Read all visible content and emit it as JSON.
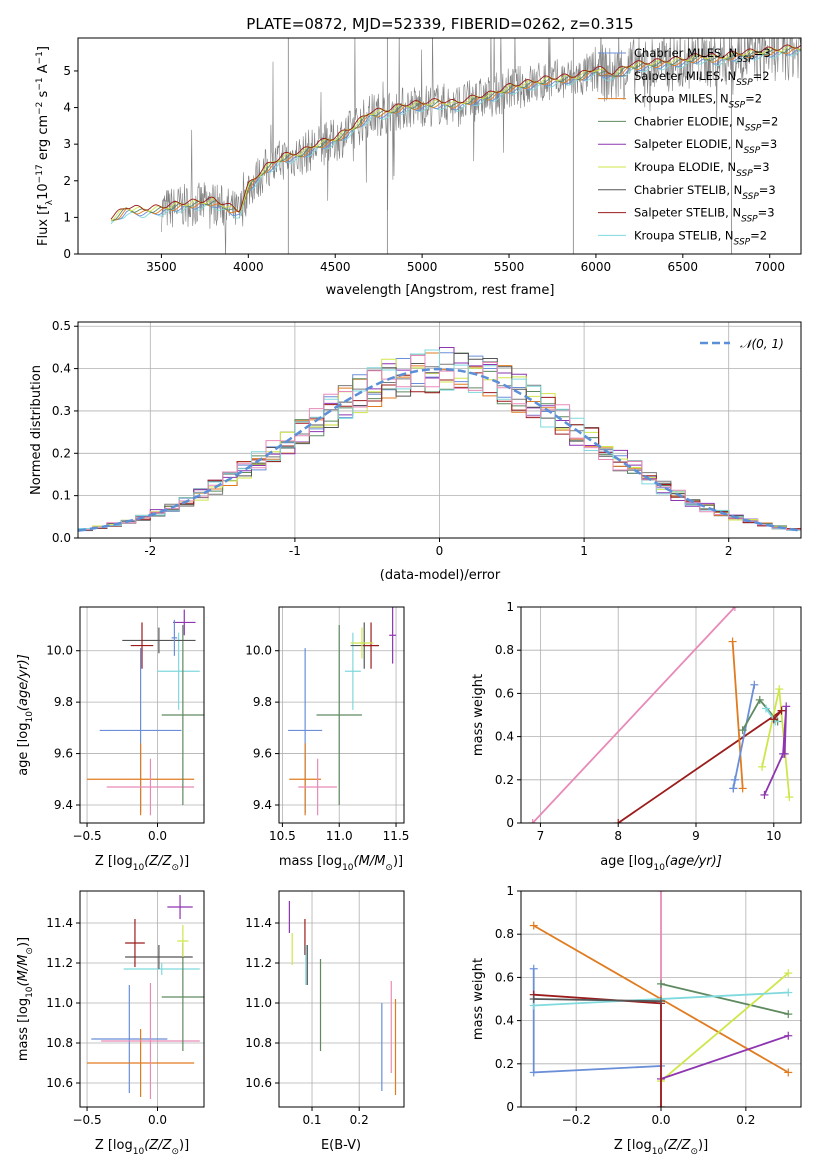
{
  "figure": {
    "title": "PLATE=0872, MJD=52339, FIBERID=0262, z=0.315"
  },
  "colors": {
    "chabrier_miles": "#6a8fd8",
    "salpeter_miles": "#7a7a7a",
    "kroupa_miles": "#e07b20",
    "chabrier_elodie": "#5f8a60",
    "salpeter_elodie": "#8e35b0",
    "kroupa_elodie": "#cfe64a",
    "chabrier_stelib": "#555555",
    "salpeter_stelib": "#9b1c1c",
    "kroupa_stelib": "#7fd9dd",
    "extra_pink": "#e88ab8",
    "gauss_dash": "#5b8fd8"
  },
  "chart_data": [
    {
      "id": "spectrum",
      "type": "line",
      "title": "PLATE=0872, MJD=52339, FIBERID=0262, z=0.315",
      "xlabel": "wavelength [Angstrom, rest frame]",
      "ylabel_main": "Flux [f",
      "ylabel_sub": "λ",
      "ylabel_rest": "10",
      "ylabel_exp1": "−17",
      "ylabel_mid": " erg cm",
      "ylabel_exp2": "−2",
      "ylabel_mid2": " s",
      "ylabel_exp3": "−1",
      "ylabel_end": " A",
      "ylabel_exp4": "−1",
      "ylabel_close": "]",
      "xlim": [
        3020,
        7180
      ],
      "ylim": [
        0,
        5.9
      ],
      "xticks": [
        3500,
        4000,
        4500,
        5000,
        5500,
        6000,
        6500,
        7000
      ],
      "yticks": [
        0,
        1,
        2,
        3,
        4,
        5
      ],
      "legend_position": "right",
      "legend": [
        {
          "label": "Chabrier MILES, N",
          "sub": "SSP",
          "eq": "=3",
          "color_key": "chabrier_miles"
        },
        {
          "label": "Salpeter MILES, N",
          "sub": "SSP",
          "eq": "=2",
          "color_key": "salpeter_miles"
        },
        {
          "label": "Kroupa MILES, N",
          "sub": "SSP",
          "eq": "=2",
          "color_key": "kroupa_miles"
        },
        {
          "label": "Chabrier ELODIE, N",
          "sub": "SSP",
          "eq": "=2",
          "color_key": "chabrier_elodie"
        },
        {
          "label": "Salpeter ELODIE, N",
          "sub": "SSP",
          "eq": "=3",
          "color_key": "salpeter_elodie"
        },
        {
          "label": "Kroupa ELODIE, N",
          "sub": "SSP",
          "eq": "=3",
          "color_key": "kroupa_elodie"
        },
        {
          "label": "Chabrier STELIB, N",
          "sub": "SSP",
          "eq": "=3",
          "color_key": "chabrier_stelib"
        },
        {
          "label": "Salpeter STELIB, N",
          "sub": "SSP",
          "eq": "=3",
          "color_key": "salpeter_stelib"
        },
        {
          "label": "Kroupa STELIB, N",
          "sub": "SSP",
          "eq": "=2",
          "color_key": "kroupa_stelib"
        }
      ],
      "model_curve": {
        "x": [
          3210,
          3300,
          3400,
          3500,
          3600,
          3700,
          3800,
          3900,
          3950,
          4000,
          4100,
          4200,
          4300,
          4400,
          4500,
          4600,
          4700,
          4800,
          4900,
          5000,
          5100,
          5200,
          5300,
          5400,
          5500,
          5600,
          5700,
          5800,
          5900,
          6000,
          6100,
          6200,
          6300,
          6400,
          6500,
          6600,
          6700,
          6800,
          6900,
          7000,
          7100,
          7180
        ],
        "y": [
          0.9,
          1.2,
          1.15,
          1.2,
          1.3,
          1.35,
          1.4,
          1.2,
          1.1,
          1.8,
          2.3,
          2.6,
          2.7,
          2.95,
          3.1,
          3.4,
          3.8,
          3.85,
          4.0,
          4.05,
          4.1,
          4.05,
          4.2,
          4.3,
          4.5,
          4.6,
          4.7,
          4.75,
          4.8,
          5.0,
          4.85,
          5.1,
          5.15,
          5.2,
          5.25,
          5.35,
          5.3,
          5.4,
          5.45,
          5.5,
          5.55,
          5.6
        ]
      }
    },
    {
      "id": "residuals",
      "type": "area",
      "xlabel": "(data-model)/error",
      "ylabel": "Normed distribution",
      "xlim": [
        -2.5,
        2.5
      ],
      "ylim": [
        0,
        0.51
      ],
      "xticks": [
        -2,
        -1,
        0,
        1,
        2
      ],
      "yticks": [
        0.0,
        0.1,
        0.2,
        0.3,
        0.4,
        0.5
      ],
      "legend_position": "top-right",
      "legend_label": "𝒩(0, 1)",
      "grid": true
    },
    {
      "id": "age_vs_Z",
      "type": "scatter",
      "xlabel": "Z [log",
      "xlabel_sub": "10",
      "xlabel_rest": "(Z/Z",
      "xlabel_sub2": "⊙",
      "xlabel_end": ")]",
      "ylabel": "age  [log",
      "ylabel_sub": "10",
      "ylabel_rest": "(age/yr)]",
      "xlim": [
        -0.55,
        0.33
      ],
      "ylim": [
        9.33,
        10.17
      ],
      "xticks": [
        -0.5,
        0.0
      ],
      "xticklabels": [
        "−0.5",
        "0.0"
      ],
      "yticks": [
        9.4,
        9.6,
        9.8,
        10.0
      ],
      "yticklabels": [
        "9.4",
        "9.6",
        "9.8",
        "10.0"
      ],
      "grid": true,
      "points": [
        {
          "x": -0.12,
          "y": 9.69,
          "xerr": 0.29,
          "yerr": 0.32,
          "color_key": "chabrier_miles"
        },
        {
          "x": -0.12,
          "y": 9.5,
          "xerr": 0.38,
          "yerr": 0.14,
          "color_key": "kroupa_miles"
        },
        {
          "x": -0.05,
          "y": 9.47,
          "xerr": 0.31,
          "yerr": 0.11,
          "color_key": "extra_pink"
        },
        {
          "x": 0.15,
          "y": 9.92,
          "xerr": 0.15,
          "yerr": 0.15,
          "color_key": "kroupa_stelib"
        },
        {
          "x": 0.18,
          "y": 9.75,
          "xerr": 0.15,
          "yerr": 0.35,
          "color_key": "chabrier_elodie"
        },
        {
          "x": 0.01,
          "y": 10.04,
          "xerr": 0.26,
          "yerr": 0.05,
          "color_key": "chabrier_stelib"
        },
        {
          "x": -0.11,
          "y": 10.02,
          "xerr": 0.08,
          "yerr": 0.09,
          "color_key": "salpeter_stelib"
        },
        {
          "x": 0.19,
          "y": 10.11,
          "xerr": 0.08,
          "yerr": 0.05,
          "color_key": "salpeter_elodie"
        },
        {
          "x": 0.12,
          "y": 10.05,
          "xerr": 0.02,
          "yerr": 0.07,
          "color_key": "chabrier_miles"
        }
      ]
    },
    {
      "id": "age_vs_mass",
      "type": "scatter",
      "xlabel": "mass [log",
      "xlabel_sub": "10",
      "xlabel_rest": "(M/M",
      "xlabel_sub2": "⊙",
      "xlabel_end": ")]",
      "xlim": [
        10.47,
        11.57
      ],
      "ylim": [
        9.33,
        10.17
      ],
      "xticks": [
        10.5,
        11.0,
        11.5
      ],
      "xticklabels": [
        "10.5",
        "11.0",
        "11.5"
      ],
      "yticks": [
        9.4,
        9.6,
        9.8,
        10.0
      ],
      "yticklabels": [
        "9.4",
        "9.6",
        "9.8",
        "10.0"
      ],
      "grid": true,
      "points": [
        {
          "x": 10.7,
          "y": 9.69,
          "xerr": 0.15,
          "yerr": 0.32,
          "color_key": "chabrier_miles"
        },
        {
          "x": 10.7,
          "y": 9.5,
          "xerr": 0.14,
          "yerr": 0.14,
          "color_key": "kroupa_miles"
        },
        {
          "x": 10.81,
          "y": 9.47,
          "xerr": 0.17,
          "yerr": 0.11,
          "color_key": "extra_pink"
        },
        {
          "x": 11.0,
          "y": 9.75,
          "xerr": 0.2,
          "yerr": 0.35,
          "color_key": "chabrier_elodie"
        },
        {
          "x": 11.12,
          "y": 9.92,
          "xerr": 0.07,
          "yerr": 0.15,
          "color_key": "kroupa_stelib"
        },
        {
          "x": 11.22,
          "y": 10.02,
          "xerr": 0.12,
          "yerr": 0.09,
          "color_key": "chabrier_stelib"
        },
        {
          "x": 11.28,
          "y": 10.02,
          "xerr": 0.07,
          "yerr": 0.09,
          "color_key": "salpeter_stelib"
        },
        {
          "x": 11.47,
          "y": 10.06,
          "xerr": 0.03,
          "yerr": 0.11,
          "color_key": "salpeter_elodie"
        },
        {
          "x": 11.2,
          "y": 10.03,
          "xerr": 0.1,
          "yerr": 0.06,
          "color_key": "kroupa_elodie"
        }
      ]
    },
    {
      "id": "massweight_vs_age",
      "type": "line",
      "xlabel": "age  [log",
      "xlabel_sub": "10",
      "xlabel_rest": "(age/yr)]",
      "ylabel": "mass weight",
      "xlim": [
        6.75,
        10.35
      ],
      "ylim": [
        0.0,
        1.0
      ],
      "xticks": [
        7,
        8,
        9,
        10
      ],
      "yticks": [
        0.0,
        0.2,
        0.4,
        0.6,
        0.8,
        1.0
      ],
      "grid": true,
      "series": [
        {
          "color_key": "extra_pink",
          "x": [
            6.9,
            9.5
          ],
          "y": [
            0.0,
            1.0
          ]
        },
        {
          "color_key": "salpeter_stelib",
          "x": [
            8.0,
            10.1
          ],
          "y": [
            0.0,
            0.52
          ]
        },
        {
          "color_key": "kroupa_miles",
          "x": [
            9.47,
            9.6
          ],
          "y": [
            0.84,
            0.16
          ]
        },
        {
          "color_key": "chabrier_miles",
          "x": [
            9.48,
            9.75
          ],
          "y": [
            0.16,
            0.64
          ]
        },
        {
          "color_key": "chabrier_miles",
          "x": [
            9.48,
            9.5
          ],
          "y": [
            0.16,
            0.2
          ]
        },
        {
          "color_key": "chabrier_elodie",
          "x": [
            9.6,
            9.82,
            10.05
          ],
          "y": [
            0.43,
            0.57,
            0.47
          ]
        },
        {
          "color_key": "kroupa_elodie",
          "x": [
            9.85,
            10.07,
            10.2
          ],
          "y": [
            0.26,
            0.62,
            0.12
          ]
        },
        {
          "color_key": "kroupa_stelib",
          "x": [
            9.9,
            10.02
          ],
          "y": [
            0.53,
            0.47
          ]
        },
        {
          "color_key": "salpeter_elodie",
          "x": [
            9.88,
            10.12,
            10.16,
            10.14
          ],
          "y": [
            0.13,
            0.32,
            0.54,
            0.32
          ]
        },
        {
          "color_key": "salpeter_stelib",
          "x": [
            10.0,
            10.1
          ],
          "y": [
            0.48,
            0.52
          ]
        }
      ]
    },
    {
      "id": "mass_vs_Z",
      "type": "scatter",
      "xlabel": "Z [log",
      "xlabel_sub": "10",
      "xlabel_rest": "(Z/Z",
      "xlabel_sub2": "⊙",
      "xlabel_end": ")]",
      "ylabel": "mass [log",
      "ylabel_sub": "10",
      "ylabel_rest": "(M/M",
      "ylabel_sub2": "⊙",
      "ylabel_end": ")]",
      "xlim": [
        -0.55,
        0.33
      ],
      "ylim": [
        10.48,
        11.56
      ],
      "xticks": [
        -0.5,
        0.0
      ],
      "xticklabels": [
        "−0.5",
        "0.0"
      ],
      "yticks": [
        10.6,
        10.8,
        11.0,
        11.2,
        11.4
      ],
      "yticklabels": [
        "10.6",
        "10.8",
        "11.0",
        "11.2",
        "11.4"
      ],
      "grid": true,
      "points": [
        {
          "x": -0.2,
          "y": 10.82,
          "xerr": 0.27,
          "yerr": 0.27,
          "color_key": "chabrier_miles"
        },
        {
          "x": -0.12,
          "y": 10.7,
          "xerr": 0.38,
          "yerr": 0.17,
          "color_key": "kroupa_miles"
        },
        {
          "x": -0.05,
          "y": 10.81,
          "xerr": 0.35,
          "yerr": 0.29,
          "color_key": "extra_pink"
        },
        {
          "x": 0.03,
          "y": 11.17,
          "xerr": 0.27,
          "yerr": 0.03,
          "color_key": "kroupa_stelib"
        },
        {
          "x": 0.18,
          "y": 11.03,
          "xerr": 0.15,
          "yerr": 0.27,
          "color_key": "chabrier_elodie"
        },
        {
          "x": 0.01,
          "y": 11.23,
          "xerr": 0.24,
          "yerr": 0.06,
          "color_key": "chabrier_stelib"
        },
        {
          "x": -0.16,
          "y": 11.3,
          "xerr": 0.07,
          "yerr": 0.12,
          "color_key": "salpeter_stelib"
        },
        {
          "x": 0.16,
          "y": 11.48,
          "xerr": 0.09,
          "yerr": 0.06,
          "color_key": "salpeter_elodie"
        },
        {
          "x": 0.18,
          "y": 11.31,
          "xerr": 0.04,
          "yerr": 0.08,
          "color_key": "kroupa_elodie"
        }
      ]
    },
    {
      "id": "mass_vs_ebv",
      "type": "scatter",
      "xlabel": "E(B-V)",
      "xlim": [
        0.03,
        0.295
      ],
      "ylim": [
        10.48,
        11.56
      ],
      "xticks": [
        0.1,
        0.2
      ],
      "xticklabels": [
        "0.1",
        "0.2"
      ],
      "yticks": [
        10.6,
        10.8,
        11.0,
        11.2,
        11.4
      ],
      "yticklabels": [
        "10.6",
        "10.8",
        "11.0",
        "11.2",
        "11.4"
      ],
      "grid": true,
      "points": [
        {
          "x": 0.052,
          "y": 11.43,
          "xerr": 0.0,
          "yerr": 0.08,
          "color_key": "salpeter_elodie"
        },
        {
          "x": 0.058,
          "y": 11.27,
          "xerr": 0.0,
          "yerr": 0.08,
          "color_key": "kroupa_elodie"
        },
        {
          "x": 0.085,
          "y": 11.33,
          "xerr": 0.0,
          "yerr": 0.09,
          "color_key": "salpeter_stelib"
        },
        {
          "x": 0.087,
          "y": 11.19,
          "xerr": 0.0,
          "yerr": 0.1,
          "color_key": "kroupa_stelib"
        },
        {
          "x": 0.09,
          "y": 11.19,
          "xerr": 0.0,
          "yerr": 0.1,
          "color_key": "chabrier_stelib"
        },
        {
          "x": 0.118,
          "y": 10.99,
          "xerr": 0.0,
          "yerr": 0.23,
          "color_key": "chabrier_elodie"
        },
        {
          "x": 0.248,
          "y": 10.78,
          "xerr": 0.0,
          "yerr": 0.22,
          "color_key": "chabrier_miles"
        },
        {
          "x": 0.268,
          "y": 10.88,
          "xerr": 0.0,
          "yerr": 0.23,
          "color_key": "extra_pink"
        },
        {
          "x": 0.277,
          "y": 10.78,
          "xerr": 0.0,
          "yerr": 0.24,
          "color_key": "kroupa_miles"
        }
      ]
    },
    {
      "id": "massweight_vs_Z",
      "type": "line",
      "xlabel": "Z [log",
      "xlabel_sub": "10",
      "xlabel_rest": "(Z/Z",
      "xlabel_sub2": "⊙",
      "xlabel_end": ")]",
      "ylabel": "mass weight",
      "xlim": [
        -0.33,
        0.33
      ],
      "ylim": [
        0.0,
        1.0
      ],
      "xticks": [
        -0.2,
        0.0,
        0.2
      ],
      "xticklabels": [
        "−0.2",
        "0.0",
        "0.2"
      ],
      "yticks": [
        0.0,
        0.2,
        0.4,
        0.6,
        0.8,
        1.0
      ],
      "grid": true,
      "series": [
        {
          "color_key": "extra_pink",
          "x": [
            0.0,
            0.0
          ],
          "y": [
            0.0,
            1.0
          ]
        },
        {
          "color_key": "kroupa_miles",
          "x": [
            -0.3,
            0.0,
            0.3
          ],
          "y": [
            0.84,
            0.5,
            0.16
          ]
        },
        {
          "color_key": "chabrier_miles",
          "x": [
            -0.3,
            -0.3,
            0.0
          ],
          "y": [
            0.64,
            0.16,
            0.19
          ]
        },
        {
          "color_key": "chabrier_elodie",
          "x": [
            0.0,
            0.3
          ],
          "y": [
            0.57,
            0.43
          ]
        },
        {
          "color_key": "kroupa_elodie",
          "x": [
            0.0,
            0.3
          ],
          "y": [
            0.12,
            0.62
          ]
        },
        {
          "color_key": "kroupa_stelib",
          "x": [
            -0.3,
            0.3
          ],
          "y": [
            0.47,
            0.53
          ]
        },
        {
          "color_key": "salpeter_elodie",
          "x": [
            0.0,
            0.3
          ],
          "y": [
            0.13,
            0.33
          ]
        },
        {
          "color_key": "salpeter_stelib",
          "x": [
            -0.3,
            0.0,
            0.0
          ],
          "y": [
            0.52,
            0.48,
            0.0
          ]
        },
        {
          "color_key": "chabrier_stelib",
          "x": [
            -0.3,
            0.0
          ],
          "y": [
            0.5,
            0.49
          ]
        }
      ]
    }
  ]
}
